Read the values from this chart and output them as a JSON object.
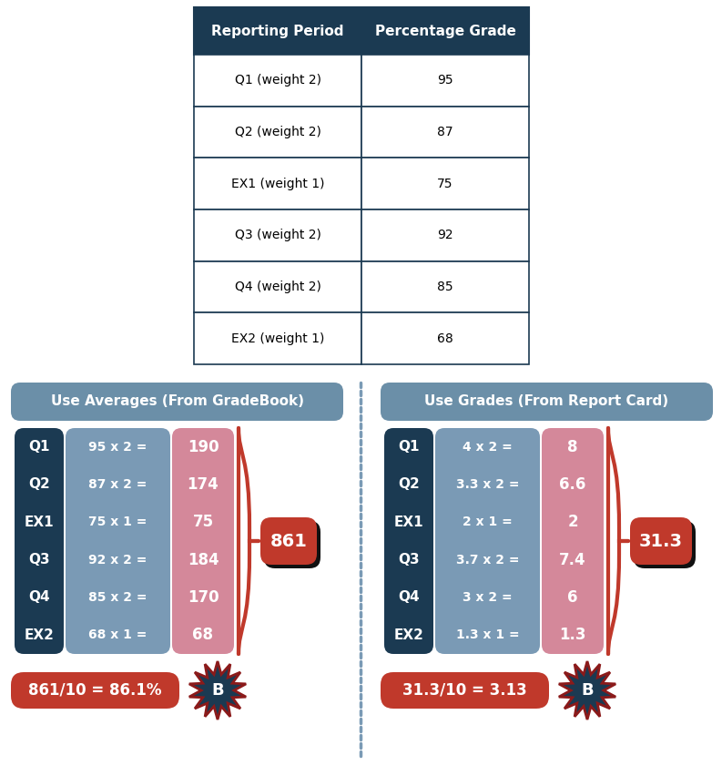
{
  "table_header": [
    "Reporting Period",
    "Percentage Grade"
  ],
  "table_rows": [
    [
      "Q1 (weight 2)",
      "95"
    ],
    [
      "Q2 (weight 2)",
      "87"
    ],
    [
      "EX1 (weight 1)",
      "75"
    ],
    [
      "Q3 (weight 2)",
      "92"
    ],
    [
      "Q4 (weight 2)",
      "85"
    ],
    [
      "EX2 (weight 1)",
      "68"
    ]
  ],
  "header_bg": "#1b3a52",
  "table_border_color": "#1b3a52",
  "left_title": "Use Averages (From GradeBook)",
  "right_title": "Use Grades (From Report Card)",
  "title_bg": "#6b8fa8",
  "col1_bg": "#1b3a52",
  "col2_bg": "#7a9ab5",
  "col3_bg": "#d4889a",
  "left_rows": [
    {
      "label": "Q1",
      "formula": "95 x 2 =",
      "result": "190"
    },
    {
      "label": "Q2",
      "formula": "87 x 2 =",
      "result": "174"
    },
    {
      "label": "EX1",
      "formula": "75 x 1 =",
      "result": "75"
    },
    {
      "label": "Q3",
      "formula": "92 x 2 =",
      "result": "184"
    },
    {
      "label": "Q4",
      "formula": "85 x 2 =",
      "result": "170"
    },
    {
      "label": "EX2",
      "formula": "68 x 1 =",
      "result": "68"
    }
  ],
  "left_sum": "861",
  "left_formula": "861/10 = 86.1%",
  "right_rows": [
    {
      "label": "Q1",
      "formula": "4 x 2 =",
      "result": "8"
    },
    {
      "label": "Q2",
      "formula": "3.3 x 2 =",
      "result": "6.6"
    },
    {
      "label": "EX1",
      "formula": "2 x 1 =",
      "result": "2"
    },
    {
      "label": "Q3",
      "formula": "3.7 x 2 =",
      "result": "7.4"
    },
    {
      "label": "Q4",
      "formula": "3 x 2 =",
      "result": "6"
    },
    {
      "label": "EX2",
      "formula": "1.3 x 1 =",
      "result": "1.3"
    }
  ],
  "right_sum": "31.3",
  "right_formula": "31.3/10 = 3.13",
  "grade_label": "B",
  "sum_bg": "#c0392b",
  "formula_bg": "#c0392b",
  "dotted_line_color": "#7a9ab5",
  "brace_color": "#c0392b",
  "star_fill": "#1b3a52",
  "star_edge": "#8b1a1a"
}
